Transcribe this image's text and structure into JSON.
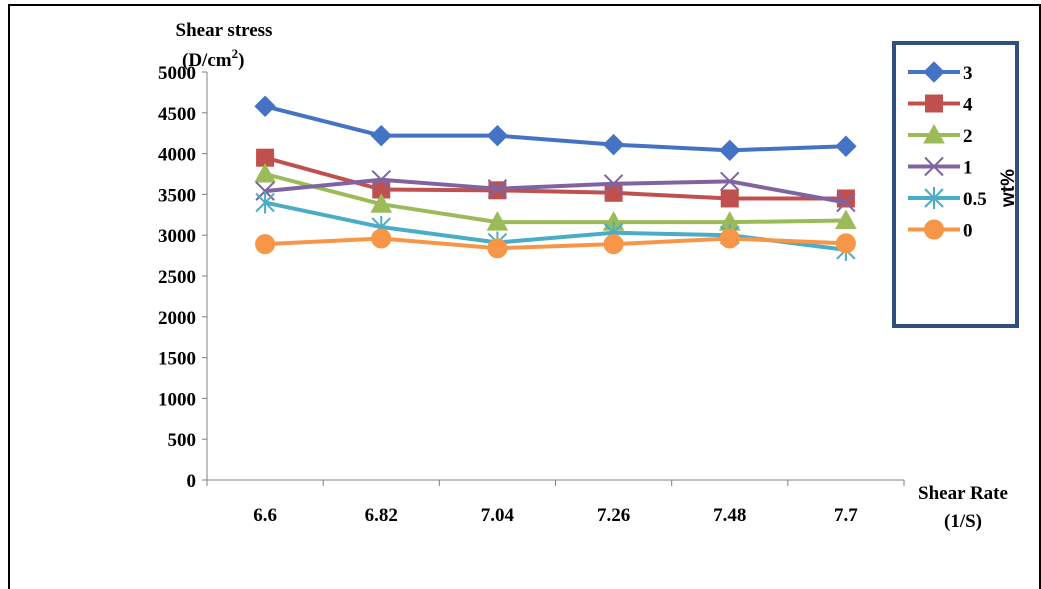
{
  "chart_data": {
    "type": "line",
    "title": "",
    "ylabel_line1": "Shear stress",
    "ylabel_unit_base": "(D/cm",
    "ylabel_unit_sup": "2",
    "ylabel_unit_close": ")",
    "xlabel_line1": "Shear Rate",
    "xlabel_line2": "(1/S)",
    "legend_title": "wt%",
    "legend_placement": "right",
    "grid": false,
    "categories": [
      "6.6",
      "6.82",
      "7.04",
      "7.26",
      "7.48",
      "7.7"
    ],
    "ylim": [
      0,
      5000
    ],
    "yticks": [
      "0",
      "500",
      "1000",
      "1500",
      "2000",
      "2500",
      "3000",
      "3500",
      "4000",
      "4500",
      "5000"
    ],
    "series": [
      {
        "name": "3",
        "color": "#4472C4",
        "marker": "diamond",
        "values": [
          4580,
          4220,
          4220,
          4110,
          4040,
          4090
        ]
      },
      {
        "name": "4",
        "color": "#C0504D",
        "marker": "square",
        "values": [
          3950,
          3560,
          3550,
          3520,
          3450,
          3450
        ]
      },
      {
        "name": "2",
        "color": "#9BBB59",
        "marker": "triangle",
        "values": [
          3750,
          3380,
          3160,
          3160,
          3160,
          3180
        ]
      },
      {
        "name": "1",
        "color": "#8064A2",
        "marker": "x",
        "values": [
          3540,
          3680,
          3570,
          3630,
          3660,
          3400
        ]
      },
      {
        "name": "0.5",
        "color": "#4BACC6",
        "marker": "star",
        "values": [
          3400,
          3100,
          2910,
          3030,
          3000,
          2820
        ]
      },
      {
        "name": "0",
        "color": "#F79646",
        "marker": "circle",
        "values": [
          2890,
          2960,
          2840,
          2890,
          2960,
          2900
        ]
      }
    ]
  }
}
